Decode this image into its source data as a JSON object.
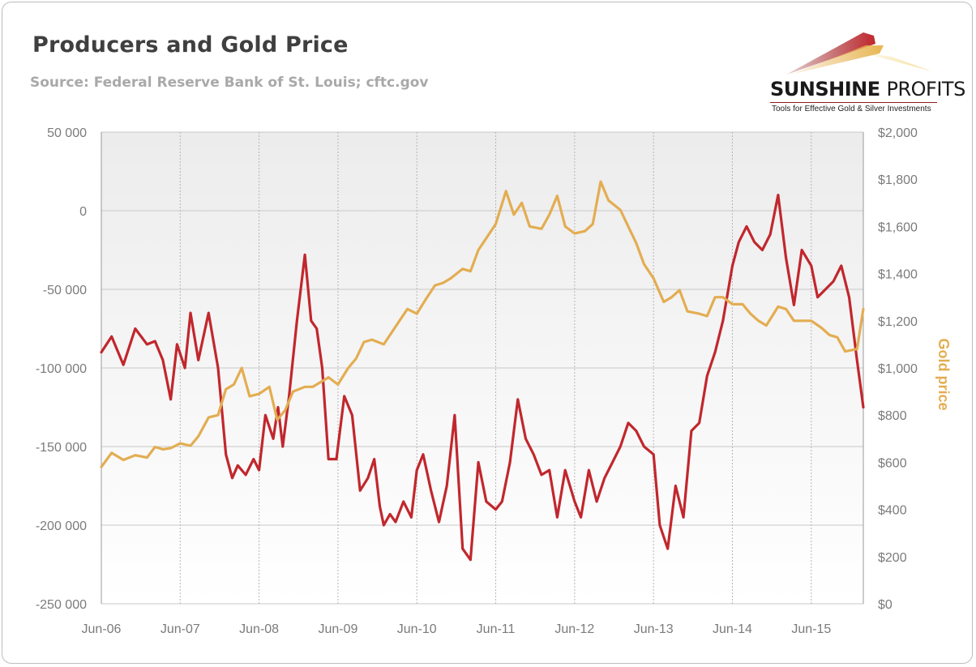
{
  "title": "Producers and Gold Price",
  "subtitle": "Source: Federal Reserve Bank of St. Louis; cftc.gov",
  "logo": {
    "brand_bold": "SUNSHINE",
    "brand_light": "PROFITS",
    "tagline": "Tools for Effective Gold & Silver Investments"
  },
  "chart_data": {
    "type": "line",
    "title": "Producers and Gold Price",
    "x_categories": [
      "Jun-06",
      "Jun-07",
      "Jun-08",
      "Jun-09",
      "Jun-10",
      "Jun-11",
      "Jun-12",
      "Jun-13",
      "Jun-14",
      "Jun-15"
    ],
    "xlim": [
      2006.42,
      2016.08
    ],
    "left_axis": {
      "label": "",
      "ylim": [
        -250000,
        50000
      ],
      "ticks": [
        50000,
        0,
        -50000,
        -100000,
        -150000,
        -200000,
        -250000
      ],
      "tick_labels": [
        "50 000",
        "0",
        "-50 000",
        "-100 000",
        "-150 000",
        "-200 000",
        "-250 000"
      ]
    },
    "right_axis": {
      "label": "Gold price",
      "ylim": [
        0,
        2000
      ],
      "ticks": [
        2000,
        1800,
        1600,
        1400,
        1200,
        1000,
        800,
        600,
        400,
        200,
        0
      ],
      "tick_labels": [
        "$2,000",
        "$1,800",
        "$1,600",
        "$1,400",
        "$1,200",
        "$1,000",
        "$800",
        "$600",
        "$400",
        "$200",
        "$0"
      ]
    },
    "grid": true,
    "series": [
      {
        "axis": "left",
        "color": "#c1272d",
        "x": [
          2006.42,
          2006.55,
          2006.7,
          2006.85,
          2007.0,
          2007.1,
          2007.2,
          2007.3,
          2007.38,
          2007.48,
          2007.55,
          2007.65,
          2007.78,
          2007.9,
          2008.0,
          2008.08,
          2008.15,
          2008.25,
          2008.35,
          2008.42,
          2008.5,
          2008.6,
          2008.66,
          2008.72,
          2008.8,
          2008.9,
          2009.0,
          2009.08,
          2009.15,
          2009.22,
          2009.3,
          2009.4,
          2009.5,
          2009.6,
          2009.7,
          2009.8,
          2009.88,
          2009.95,
          2010.0,
          2010.08,
          2010.15,
          2010.25,
          2010.35,
          2010.42,
          2010.5,
          2010.6,
          2010.7,
          2010.8,
          2010.9,
          2011.0,
          2011.1,
          2011.2,
          2011.3,
          2011.42,
          2011.5,
          2011.6,
          2011.7,
          2011.8,
          2011.9,
          2012.0,
          2012.1,
          2012.2,
          2012.3,
          2012.42,
          2012.5,
          2012.6,
          2012.7,
          2012.8,
          2012.9,
          2013.0,
          2013.1,
          2013.2,
          2013.3,
          2013.42,
          2013.5,
          2013.6,
          2013.7,
          2013.8,
          2013.9,
          2014.0,
          2014.1,
          2014.2,
          2014.3,
          2014.42,
          2014.5,
          2014.6,
          2014.7,
          2014.8,
          2014.9,
          2015.0,
          2015.1,
          2015.2,
          2015.3,
          2015.42,
          2015.5,
          2015.6,
          2015.7,
          2015.8,
          2015.9,
          2016.0,
          2016.08
        ],
        "values": [
          -90000,
          -80000,
          -98000,
          -75000,
          -85000,
          -83000,
          -95000,
          -120000,
          -85000,
          -100000,
          -65000,
          -95000,
          -65000,
          -100000,
          -155000,
          -170000,
          -162000,
          -168000,
          -158000,
          -165000,
          -130000,
          -145000,
          -125000,
          -150000,
          -118000,
          -70000,
          -28000,
          -70000,
          -75000,
          -100000,
          -158000,
          -158000,
          -118000,
          -130000,
          -178000,
          -170000,
          -158000,
          -188000,
          -200000,
          -193000,
          -198000,
          -185000,
          -195000,
          -165000,
          -155000,
          -178000,
          -198000,
          -175000,
          -130000,
          -215000,
          -222000,
          -160000,
          -185000,
          -190000,
          -185000,
          -160000,
          -120000,
          -145000,
          -155000,
          -168000,
          -165000,
          -195000,
          -165000,
          -185000,
          -195000,
          -165000,
          -185000,
          -170000,
          -160000,
          -150000,
          -135000,
          -140000,
          -150000,
          -155000,
          -200000,
          -215000,
          -175000,
          -195000,
          -140000,
          -135000,
          -105000,
          -90000,
          -70000,
          -35000,
          -20000,
          -10000,
          -20000,
          -25000,
          -15000,
          10000,
          -30000,
          -60000,
          -25000,
          -35000,
          -55000,
          -50000,
          -45000,
          -35000,
          -55000,
          -95000,
          -125000
        ]
      },
      {
        "axis": "right",
        "color": "#e3ad52",
        "x": [
          2006.42,
          2006.55,
          2006.7,
          2006.85,
          2007.0,
          2007.1,
          2007.2,
          2007.3,
          2007.42,
          2007.55,
          2007.65,
          2007.78,
          2007.9,
          2008.0,
          2008.1,
          2008.2,
          2008.3,
          2008.42,
          2008.55,
          2008.65,
          2008.75,
          2008.85,
          2009.0,
          2009.1,
          2009.2,
          2009.3,
          2009.42,
          2009.55,
          2009.65,
          2009.75,
          2009.85,
          2010.0,
          2010.1,
          2010.2,
          2010.3,
          2010.42,
          2010.55,
          2010.65,
          2010.75,
          2010.85,
          2011.0,
          2011.1,
          2011.2,
          2011.3,
          2011.42,
          2011.55,
          2011.65,
          2011.75,
          2011.85,
          2012.0,
          2012.1,
          2012.2,
          2012.3,
          2012.42,
          2012.55,
          2012.65,
          2012.75,
          2012.85,
          2013.0,
          2013.1,
          2013.2,
          2013.3,
          2013.42,
          2013.55,
          2013.65,
          2013.75,
          2013.85,
          2014.0,
          2014.1,
          2014.2,
          2014.3,
          2014.42,
          2014.55,
          2014.65,
          2014.75,
          2014.85,
          2015.0,
          2015.1,
          2015.2,
          2015.3,
          2015.42,
          2015.55,
          2015.65,
          2015.75,
          2015.85,
          2016.0,
          2016.08
        ],
        "values": [
          580,
          640,
          610,
          630,
          620,
          665,
          655,
          660,
          680,
          670,
          710,
          790,
          800,
          910,
          930,
          1000,
          880,
          890,
          920,
          780,
          820,
          900,
          920,
          920,
          940,
          960,
          930,
          1000,
          1040,
          1110,
          1120,
          1100,
          1150,
          1200,
          1250,
          1230,
          1300,
          1350,
          1360,
          1380,
          1420,
          1410,
          1500,
          1550,
          1610,
          1750,
          1650,
          1700,
          1600,
          1590,
          1650,
          1730,
          1600,
          1570,
          1580,
          1610,
          1790,
          1710,
          1670,
          1600,
          1530,
          1440,
          1380,
          1280,
          1300,
          1330,
          1240,
          1230,
          1220,
          1300,
          1300,
          1270,
          1270,
          1230,
          1200,
          1180,
          1260,
          1250,
          1200,
          1200,
          1200,
          1170,
          1140,
          1130,
          1070,
          1080,
          1250
        ]
      }
    ]
  }
}
